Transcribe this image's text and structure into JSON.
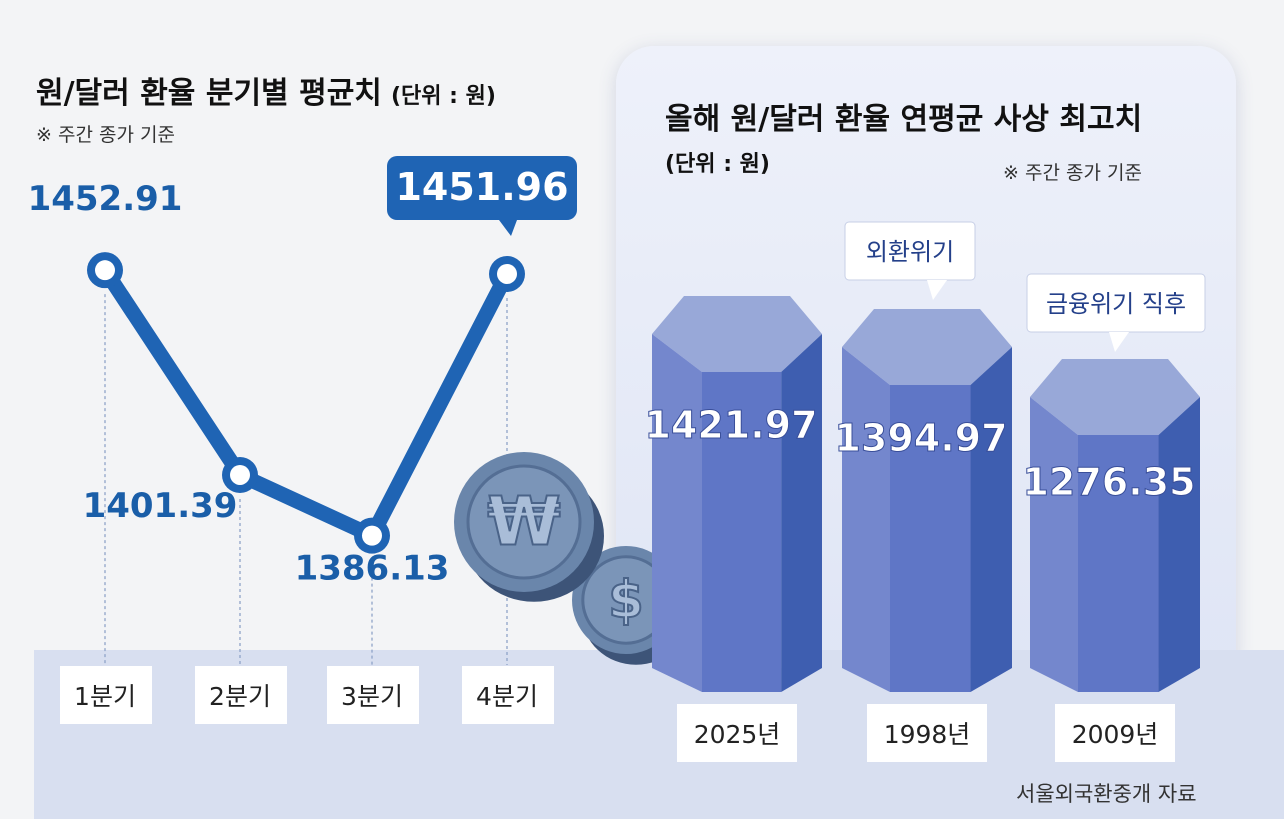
{
  "left_chart": {
    "title": "원/달러 환율 분기별 평균치",
    "unit": "(단위 : 원)",
    "note": "※ 주간 종가 기준",
    "chart_data": {
      "type": "line",
      "title": "원/달러 환율 분기별 평균치",
      "categories": [
        "1분기",
        "2분기",
        "3분기",
        "4분기"
      ],
      "values": [
        1452.91,
        1401.39,
        1386.13,
        1451.96
      ],
      "value_labels": [
        "1452.91",
        "1401.39",
        "1386.13",
        "1451.96"
      ],
      "highlight_index": 3
    }
  },
  "right_chart": {
    "title": "올해 원/달러 환율 연평균 사상 최고치",
    "unit": "(단위 : 원)",
    "note": "※ 주간 종가 기준",
    "chart_data": {
      "type": "bar",
      "title": "올해 원/달러 환율 연평균 사상 최고치",
      "categories": [
        "2025년",
        "1998년",
        "2009년"
      ],
      "values": [
        1421.97,
        1394.97,
        1276.35
      ],
      "value_labels": [
        "1421.97",
        "1394.97",
        "1276.35"
      ],
      "annotations": [
        "",
        "외환위기",
        "금융위기 직후"
      ]
    }
  },
  "source": "서울외국환중개 자료",
  "colors": {
    "line": "#1f64b4",
    "label": "#1a5ea8",
    "bar_front": "#5f76c6",
    "bar_side": "#3e5eb0",
    "bar_top": "#98a8d8",
    "panel": "#dde3f4",
    "strip": "#d8dff0",
    "coin": "#6a86ab"
  }
}
